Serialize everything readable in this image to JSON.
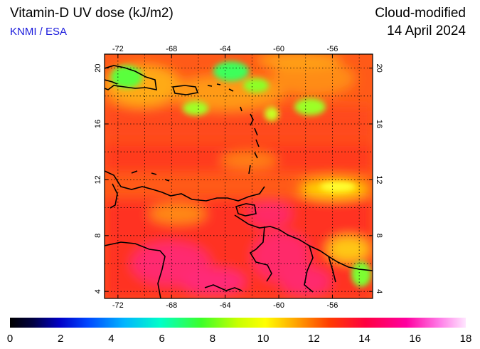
{
  "header": {
    "title": "Vitamin-D UV dose (kJ/m2)",
    "credit": "KNMI / ESA",
    "mode": "Cloud-modified",
    "date": "14 April 2024"
  },
  "map": {
    "lon_range": [
      -73,
      -53
    ],
    "lat_range": [
      3.5,
      21
    ],
    "lon_ticks": [
      -72,
      -68,
      -64,
      -60,
      -56
    ],
    "lat_ticks": [
      4,
      8,
      12,
      16,
      20
    ],
    "grid": "dotted every 2 degrees",
    "colors": {
      "ocean_red": "#ff3c1e",
      "orange": "#ff6f14",
      "yellow": "#ffd400",
      "green": "#5aff3c",
      "magenta": "#ff2a6e",
      "land_line": "#000000"
    }
  },
  "colorbar": {
    "ticks": [
      "0",
      "2",
      "4",
      "6",
      "8",
      "10",
      "12",
      "14",
      "16",
      "18"
    ]
  }
}
